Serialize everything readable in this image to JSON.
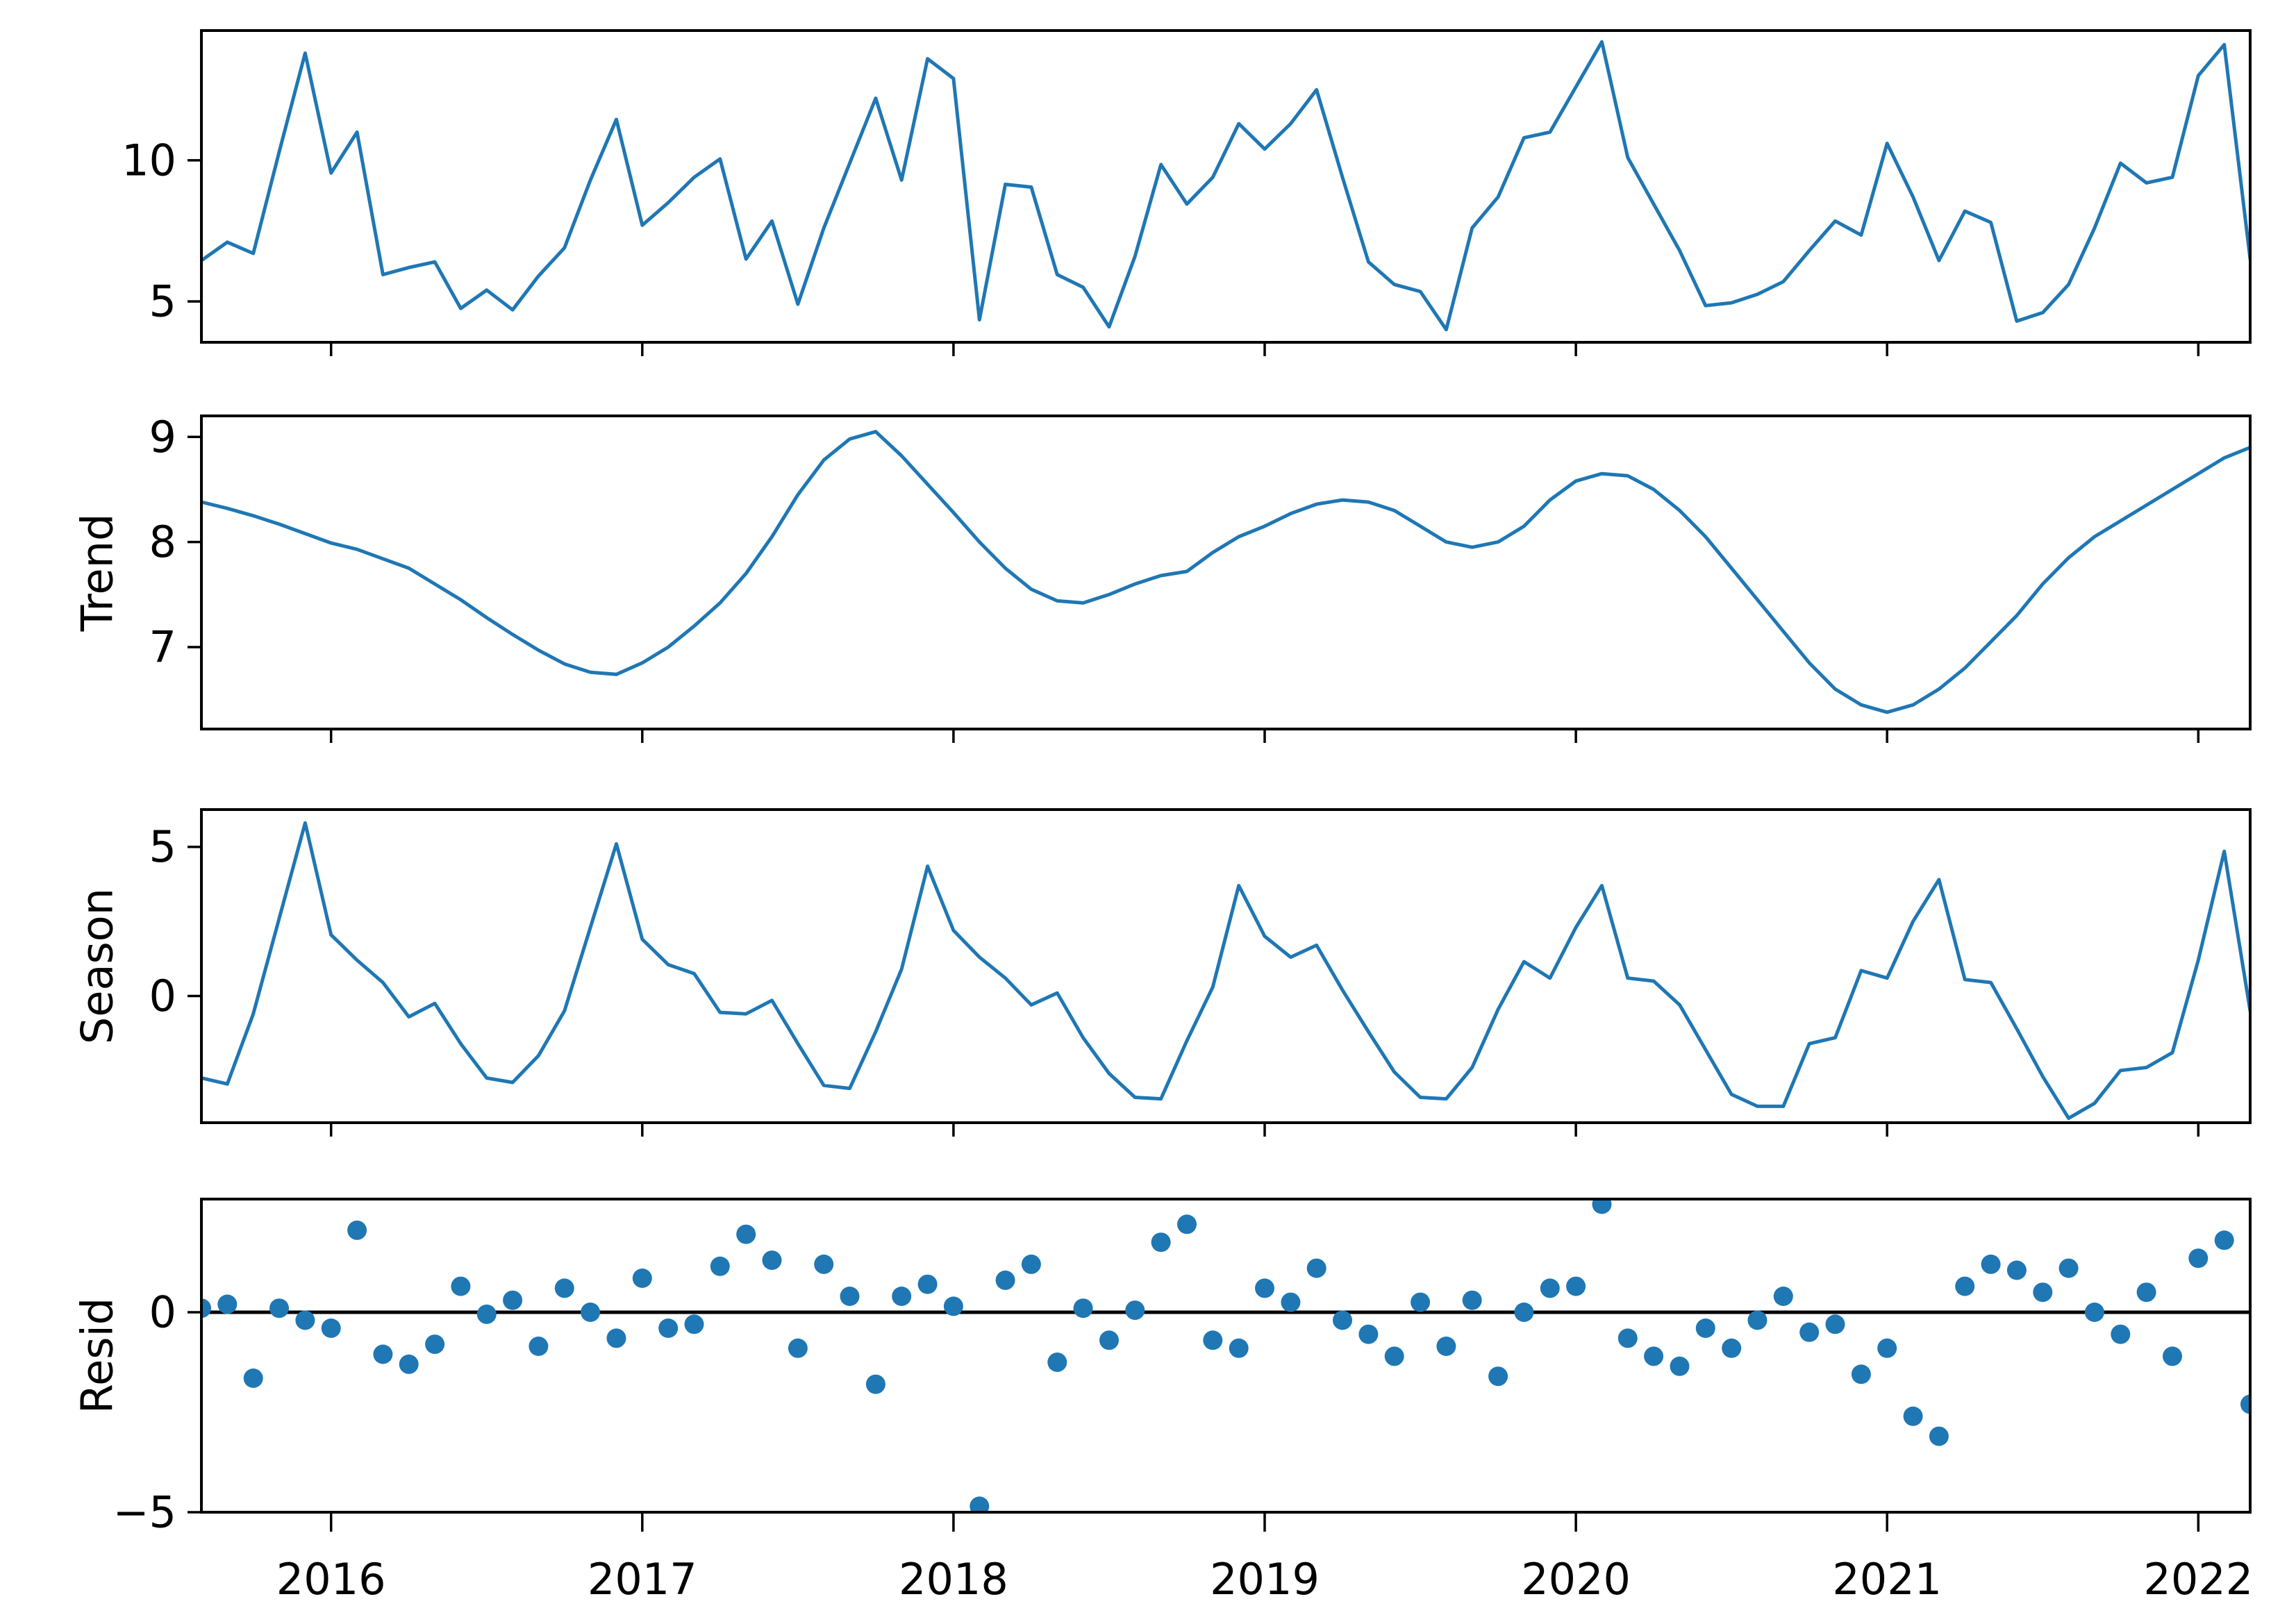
{
  "figure": {
    "title": "",
    "background": "#ffffff",
    "series_color": "#1f77b4",
    "axis_color": "#000000",
    "zero_line_color": "#000000"
  },
  "chart_data": [
    {
      "type": "line",
      "name": "observed",
      "ylabel": "",
      "yticks": [
        {
          "value": 10,
          "label": "10"
        },
        {
          "value": 5,
          "label": "5"
        }
      ],
      "ylim": [
        3.55,
        14.6
      ],
      "x_start": "2015-08",
      "x_step": "1 month",
      "values": [
        6.45,
        7.1,
        6.7,
        10.3,
        13.8,
        9.55,
        11.0,
        5.95,
        6.2,
        6.4,
        4.75,
        5.4,
        4.7,
        5.9,
        6.9,
        9.3,
        11.45,
        7.7,
        8.5,
        9.4,
        10.05,
        6.5,
        7.85,
        4.9,
        7.6,
        9.9,
        12.2,
        9.3,
        13.6,
        12.9,
        4.35,
        9.15,
        9.05,
        5.95,
        5.5,
        4.1,
        6.6,
        9.85,
        8.45,
        9.4,
        11.3,
        10.4,
        11.3,
        12.5,
        9.4,
        6.4,
        5.6,
        5.35,
        4.0,
        7.6,
        8.7,
        10.8,
        11.0,
        12.6,
        14.2,
        10.1,
        8.45,
        6.8,
        4.85,
        4.95,
        5.25,
        5.7,
        6.8,
        7.85,
        7.35,
        10.6,
        8.7,
        6.45,
        8.2,
        7.8,
        4.3,
        4.6,
        5.6,
        7.6,
        9.9,
        9.2,
        9.4,
        13.0,
        14.1,
        6.5
      ]
    },
    {
      "type": "line",
      "name": "trend",
      "ylabel": "Trend",
      "yticks": [
        {
          "value": 9,
          "label": "9"
        },
        {
          "value": 8,
          "label": "8"
        },
        {
          "value": 7,
          "label": "7"
        }
      ],
      "ylim": [
        6.22,
        9.2
      ],
      "x_start": "2015-08",
      "x_step": "1 month",
      "values": [
        8.38,
        8.32,
        8.25,
        8.17,
        8.08,
        7.99,
        7.93,
        7.84,
        7.75,
        7.6,
        7.45,
        7.28,
        7.12,
        6.97,
        6.84,
        6.76,
        6.74,
        6.85,
        7.0,
        7.2,
        7.42,
        7.7,
        8.05,
        8.45,
        8.78,
        8.98,
        9.05,
        8.82,
        8.55,
        8.28,
        8.0,
        7.75,
        7.55,
        7.44,
        7.42,
        7.5,
        7.6,
        7.68,
        7.72,
        7.9,
        8.05,
        8.15,
        8.27,
        8.36,
        8.4,
        8.38,
        8.3,
        8.15,
        8.0,
        7.95,
        8.0,
        8.15,
        8.4,
        8.58,
        8.65,
        8.63,
        8.5,
        8.3,
        8.05,
        7.75,
        7.45,
        7.15,
        6.85,
        6.6,
        6.45,
        6.38,
        6.45,
        6.6,
        6.8,
        7.05,
        7.3,
        7.6,
        7.85,
        8.05,
        8.2,
        8.35,
        8.5,
        8.65,
        8.8,
        8.9
      ]
    },
    {
      "type": "line",
      "name": "season",
      "ylabel": "Season",
      "yticks": [
        {
          "value": 5,
          "label": "5"
        },
        {
          "value": 0,
          "label": "0"
        }
      ],
      "ylim": [
        -4.25,
        6.25
      ],
      "x_start": "2015-08",
      "x_step": "1 month",
      "values": [
        -2.75,
        -2.95,
        -0.6,
        2.6,
        5.8,
        2.05,
        1.2,
        0.45,
        -0.7,
        -0.25,
        -1.6,
        -2.75,
        -2.9,
        -2.0,
        -0.5,
        2.3,
        5.1,
        1.9,
        1.05,
        0.75,
        -0.55,
        -0.6,
        -0.15,
        -1.6,
        -3.0,
        -3.1,
        -1.2,
        0.9,
        4.35,
        2.2,
        1.3,
        0.6,
        -0.3,
        0.1,
        -1.4,
        -2.6,
        -3.4,
        -3.45,
        -1.5,
        0.3,
        3.7,
        2.0,
        1.3,
        1.7,
        0.2,
        -1.2,
        -2.55,
        -3.4,
        -3.45,
        -2.4,
        -0.45,
        1.15,
        0.6,
        2.3,
        3.7,
        0.6,
        0.5,
        -0.3,
        -1.8,
        -3.3,
        -3.7,
        -3.7,
        -1.6,
        -1.4,
        0.85,
        0.6,
        2.5,
        3.9,
        0.55,
        0.45,
        -1.1,
        -2.7,
        -4.1,
        -3.6,
        -2.5,
        -2.4,
        -1.9,
        1.2,
        4.85,
        -0.5
      ]
    },
    {
      "type": "scatter",
      "name": "resid",
      "ylabel": "Resid",
      "yticks": [
        {
          "value": 0,
          "label": "0"
        },
        {
          "value": -5,
          "label": "−5"
        }
      ],
      "ylim": [
        -5.0,
        2.83
      ],
      "zero_line": true,
      "x_start": "2015-08",
      "x_step": "1 month",
      "values": [
        0.1,
        0.2,
        -1.65,
        0.1,
        -0.2,
        -0.4,
        2.05,
        -1.05,
        -1.3,
        -0.8,
        0.65,
        -0.05,
        0.3,
        -0.85,
        0.6,
        0.0,
        -0.65,
        0.85,
        -0.4,
        -0.3,
        1.15,
        1.95,
        1.3,
        -0.9,
        1.2,
        0.4,
        -1.8,
        0.4,
        0.7,
        0.15,
        -4.85,
        0.8,
        1.2,
        -1.25,
        0.1,
        -0.7,
        0.05,
        1.75,
        2.2,
        -0.7,
        -0.9,
        0.6,
        0.25,
        1.1,
        -0.2,
        -0.55,
        -1.1,
        0.25,
        -0.85,
        0.3,
        -1.6,
        0.0,
        0.6,
        0.65,
        2.7,
        -0.65,
        -1.1,
        -1.35,
        -0.4,
        -0.9,
        -0.2,
        0.4,
        -0.5,
        -0.3,
        -1.55,
        -0.9,
        -2.6,
        -3.1,
        0.65,
        1.2,
        1.05,
        0.5,
        1.1,
        0.0,
        -0.55,
        0.5,
        -1.1,
        1.35,
        1.8,
        -2.3
      ]
    }
  ],
  "x_axis": {
    "tick_labels": [
      "2016",
      "2017",
      "2018",
      "2019",
      "2020",
      "2021",
      "2022"
    ],
    "tick_month_indices": [
      5,
      17,
      29,
      41,
      53,
      65,
      77
    ],
    "n_points": 80
  }
}
